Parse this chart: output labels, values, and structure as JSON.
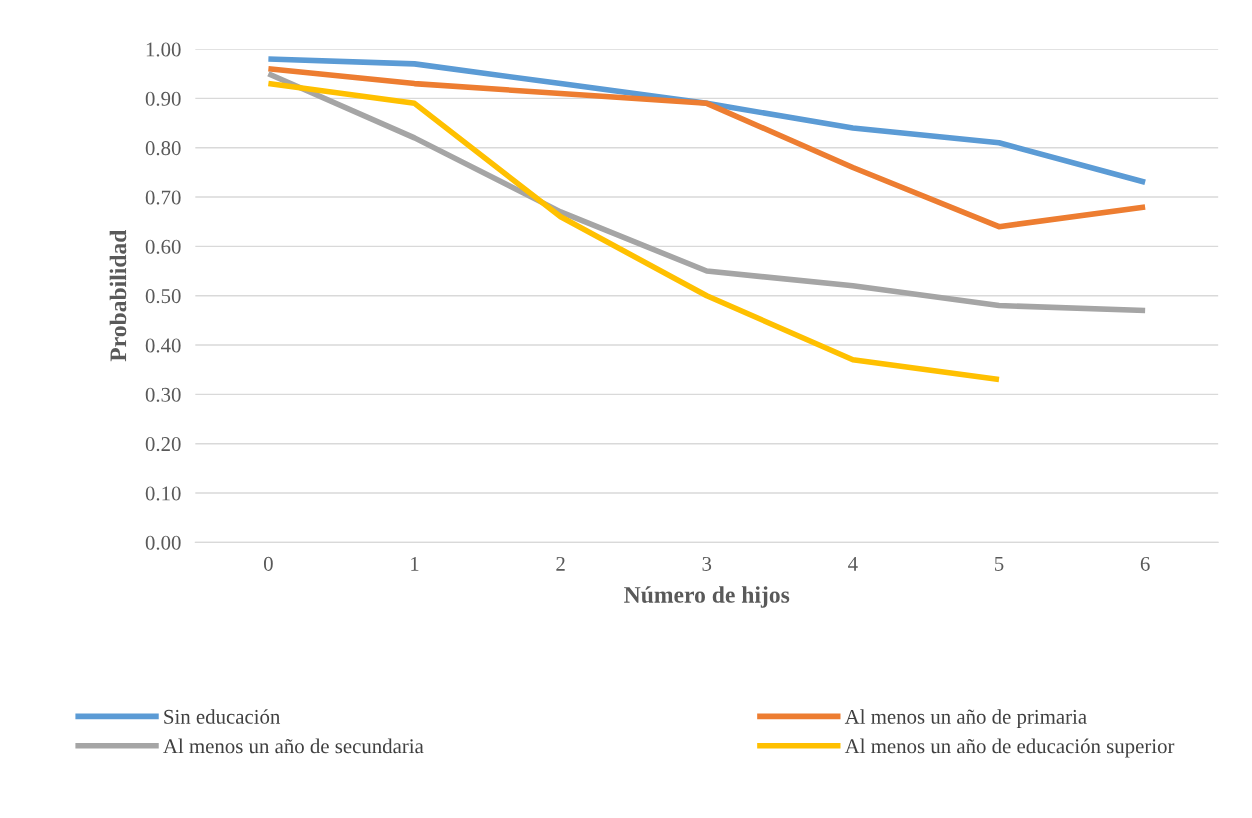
{
  "chart_data": {
    "type": "line",
    "xlabel": "Número de hijos",
    "ylabel": "Probabilidad",
    "categories": [
      "0",
      "1",
      "2",
      "3",
      "4",
      "5",
      "6"
    ],
    "series": [
      {
        "name": "Sin educación",
        "color": "#5b9bd5",
        "values": [
          0.98,
          0.97,
          0.93,
          0.89,
          0.84,
          0.81,
          0.73
        ]
      },
      {
        "name": "Al menos un año de primaria",
        "color": "#ed7d31",
        "values": [
          0.96,
          0.93,
          0.91,
          0.89,
          0.76,
          0.64,
          0.68
        ]
      },
      {
        "name": "Al menos un año de secundaria",
        "color": "#a5a5a5",
        "values": [
          0.95,
          0.82,
          0.67,
          0.55,
          0.52,
          0.48,
          0.47
        ]
      },
      {
        "name": "Al menos un año de educación superior",
        "color": "#ffc000",
        "values": [
          0.93,
          0.89,
          0.66,
          0.5,
          0.37,
          0.33,
          null
        ]
      }
    ],
    "ylim": [
      0,
      1
    ],
    "yticks": [
      {
        "value": 0,
        "label": "0.00"
      },
      {
        "value": 0.1,
        "label": "0.10"
      },
      {
        "value": 0.2,
        "label": "0.20"
      },
      {
        "value": 0.3,
        "label": "0.30"
      },
      {
        "value": 0.4,
        "label": "0.40"
      },
      {
        "value": 0.5,
        "label": "0.50"
      },
      {
        "value": 0.6,
        "label": "0.60"
      },
      {
        "value": 0.7,
        "label": "0.70"
      },
      {
        "value": 0.8,
        "label": "0.80"
      },
      {
        "value": 0.9,
        "label": "0.90"
      },
      {
        "value": 1,
        "label": "1.00"
      }
    ],
    "grid": "y",
    "legend": "bottom",
    "marker": "none",
    "line_style": "solid"
  }
}
